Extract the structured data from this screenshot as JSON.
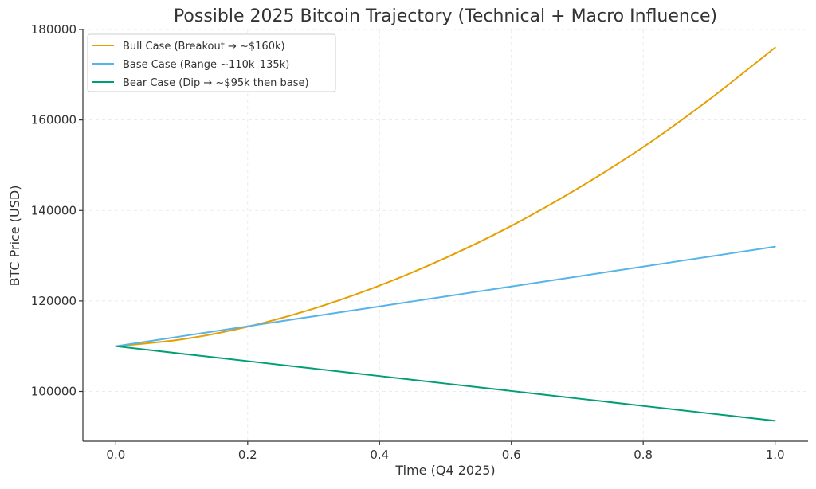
{
  "chart_data": {
    "type": "line",
    "title": "Possible 2025 Bitcoin Trajectory (Technical + Macro Influence)",
    "xlabel": "Time (Q4 2025)",
    "ylabel": "BTC Price (USD)",
    "xlim": [
      -0.05,
      1.05
    ],
    "ylim": [
      89000,
      180000
    ],
    "xticks": [
      0.0,
      0.2,
      0.4,
      0.6,
      0.8,
      1.0
    ],
    "xtick_labels": [
      "0.0",
      "0.2",
      "0.4",
      "0.6",
      "0.8",
      "1.0"
    ],
    "yticks": [
      100000,
      120000,
      140000,
      160000,
      180000
    ],
    "ytick_labels": [
      "100000",
      "120000",
      "140000",
      "160000",
      "180000"
    ],
    "grid": true,
    "legend_position": "top-left",
    "x": [
      0.0,
      0.1,
      0.2,
      0.3,
      0.4,
      0.5,
      0.6,
      0.7,
      0.8,
      0.9,
      1.0
    ],
    "series": [
      {
        "name": "Bull Case (Breakout → ~$160k)",
        "color": "#E69F00",
        "values": [
          110000,
          111500,
          114300,
          118300,
          123400,
          129500,
          136600,
          144800,
          154000,
          164500,
          176000
        ]
      },
      {
        "name": "Base Case (Range ~110k–135k)",
        "color": "#56B4E9",
        "values": [
          110000,
          112200,
          114400,
          116600,
          118800,
          121000,
          123200,
          125400,
          127600,
          129800,
          132000
        ]
      },
      {
        "name": "Bear Case (Dip → ~$95k then base)",
        "color": "#009E73",
        "values": [
          110000,
          108350,
          106700,
          105050,
          103400,
          101750,
          100100,
          98450,
          96800,
          95150,
          93500
        ]
      }
    ]
  }
}
